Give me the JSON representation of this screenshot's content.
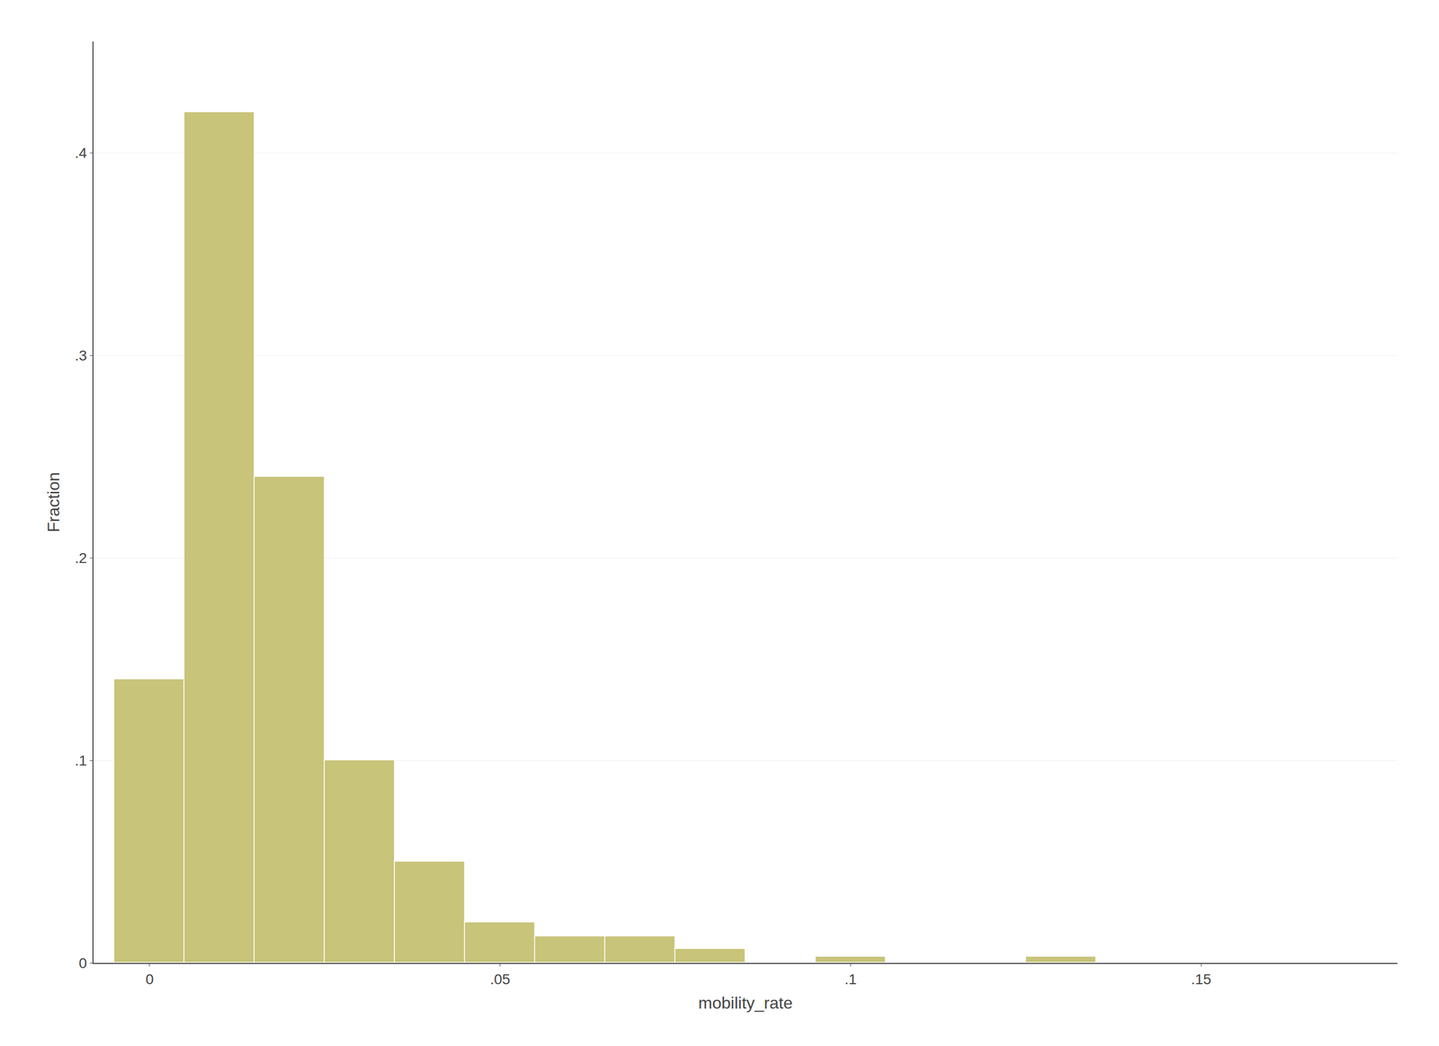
{
  "chart_data": {
    "type": "histogram",
    "xlabel": "mobility_rate",
    "ylabel": "Fraction",
    "bins": [
      -0.005,
      0.005,
      0.015,
      0.025,
      0.035,
      0.045,
      0.055,
      0.065,
      0.075,
      0.085,
      0.095,
      0.105,
      0.115,
      0.125,
      0.135,
      0.145,
      0.155,
      0.165,
      0.175
    ],
    "values": [
      0.14,
      0.42,
      0.24,
      0.1,
      0.05,
      0.02,
      0.013,
      0.013,
      0.007,
      0.0,
      0.003,
      0.0,
      0.0,
      0.003,
      0.0,
      0.0,
      0.0,
      0.0
    ],
    "color": "#c8c47a",
    "xlim": [
      -0.008,
      0.178
    ],
    "xticks": [
      0,
      {
        "value": 0.05,
        "label": ".05"
      },
      {
        "value": 0.1,
        "label": ".1"
      },
      {
        "value": 0.15,
        "label": ".15"
      }
    ],
    "ylim": [
      0,
      0.455
    ],
    "yticks": [
      0,
      {
        "value": 0.1,
        "label": ".1"
      },
      {
        "value": 0.2,
        "label": ".2"
      },
      {
        "value": 0.3,
        "label": ".3"
      },
      {
        "value": 0.4,
        "label": ".4"
      }
    ],
    "grid": "y"
  }
}
